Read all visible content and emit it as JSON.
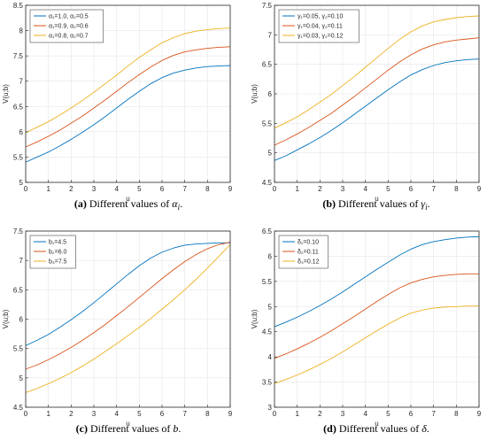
{
  "chart_data": [
    {
      "type": "line",
      "caption": {
        "letter": "(a)",
        "text": "Different values of ",
        "symbol": "α",
        "sub": "i",
        "end": "."
      },
      "xlabel": "u",
      "ylabel": "V(u;b)",
      "xlim": [
        0,
        9
      ],
      "ylim": [
        5,
        8.5
      ],
      "xticks": [
        "0",
        "1",
        "2",
        "3",
        "4",
        "5",
        "6",
        "7",
        "8",
        "9"
      ],
      "yticks": [
        "5",
        "5.5",
        "6",
        "6.5",
        "7",
        "7.5",
        "8",
        "8.5"
      ],
      "grid": true,
      "legend_position": "top-left",
      "x": [
        0,
        0.5,
        1,
        1.5,
        2,
        2.5,
        3,
        3.5,
        4,
        4.5,
        5,
        5.5,
        6,
        6.5,
        7,
        7.5,
        8,
        8.5,
        9
      ],
      "series": [
        {
          "name": "α₁=1.0, α₂=0.5",
          "color": "#0072BD",
          "values": [
            5.4,
            5.5,
            5.6,
            5.72,
            5.85,
            5.99,
            6.14,
            6.3,
            6.47,
            6.64,
            6.8,
            6.95,
            7.07,
            7.16,
            7.22,
            7.26,
            7.29,
            7.3,
            7.31
          ]
        },
        {
          "name": "α₁=0.9, α₂=0.6",
          "color": "#D95319",
          "values": [
            5.7,
            5.8,
            5.91,
            6.03,
            6.17,
            6.31,
            6.47,
            6.63,
            6.8,
            6.97,
            7.13,
            7.28,
            7.41,
            7.51,
            7.58,
            7.62,
            7.65,
            7.67,
            7.68
          ]
        },
        {
          "name": "α₁=0.8, α₂=0.7",
          "color": "#EDB120",
          "values": [
            5.98,
            6.09,
            6.2,
            6.33,
            6.47,
            6.62,
            6.78,
            6.95,
            7.12,
            7.3,
            7.47,
            7.62,
            7.76,
            7.86,
            7.94,
            7.99,
            8.02,
            8.04,
            8.05
          ]
        }
      ]
    },
    {
      "type": "line",
      "caption": {
        "letter": "(b)",
        "text": "Different values of ",
        "symbol": "γ",
        "sub": "i",
        "end": "."
      },
      "xlabel": "u",
      "ylabel": "V(u;b)",
      "xlim": [
        0,
        9
      ],
      "ylim": [
        4.5,
        7.5
      ],
      "xticks": [
        "0",
        "1",
        "2",
        "3",
        "4",
        "5",
        "6",
        "7",
        "8",
        "9"
      ],
      "yticks": [
        "4.5",
        "5",
        "5.5",
        "6",
        "6.5",
        "7",
        "7.5"
      ],
      "grid": true,
      "legend_position": "top-left",
      "x": [
        0,
        0.5,
        1,
        1.5,
        2,
        2.5,
        3,
        3.5,
        4,
        4.5,
        5,
        5.5,
        6,
        6.5,
        7,
        7.5,
        8,
        8.5,
        9
      ],
      "series": [
        {
          "name": "γ₁=0.05, γ₂=0.10",
          "color": "#0072BD",
          "values": [
            4.87,
            4.95,
            5.05,
            5.15,
            5.26,
            5.38,
            5.51,
            5.65,
            5.79,
            5.93,
            6.07,
            6.2,
            6.32,
            6.41,
            6.48,
            6.53,
            6.56,
            6.58,
            6.59
          ]
        },
        {
          "name": "γ₁=0.04, γ₂=0.11",
          "color": "#D95319",
          "values": [
            5.13,
            5.22,
            5.32,
            5.43,
            5.55,
            5.67,
            5.81,
            5.95,
            6.1,
            6.25,
            6.4,
            6.54,
            6.66,
            6.76,
            6.83,
            6.88,
            6.91,
            6.93,
            6.95
          ]
        },
        {
          "name": "γ₁=0.03, γ₂=0.12",
          "color": "#EDB120",
          "values": [
            5.42,
            5.51,
            5.61,
            5.73,
            5.86,
            5.99,
            6.14,
            6.29,
            6.45,
            6.61,
            6.77,
            6.92,
            7.05,
            7.15,
            7.22,
            7.26,
            7.29,
            7.31,
            7.32
          ]
        }
      ]
    },
    {
      "type": "line",
      "caption": {
        "letter": "(c)",
        "text": "Different values of ",
        "symbol": "b",
        "sub": "",
        "end": "."
      },
      "xlabel": "u",
      "ylabel": "V(u;b)",
      "xlim": [
        0,
        9
      ],
      "ylim": [
        4.5,
        7.5
      ],
      "xticks": [
        "0",
        "1",
        "2",
        "3",
        "4",
        "5",
        "6",
        "7",
        "8",
        "9"
      ],
      "yticks": [
        "4.5",
        "5",
        "5.5",
        "6",
        "6.5",
        "7",
        "7.5"
      ],
      "grid": true,
      "legend_position": "top-left",
      "x": [
        0,
        0.5,
        1,
        1.5,
        2,
        2.5,
        3,
        3.5,
        4,
        4.5,
        5,
        5.5,
        6,
        6.5,
        7,
        7.5,
        8,
        8.5,
        9
      ],
      "series": [
        {
          "name": "b₁=4.5",
          "color": "#0072BD",
          "values": [
            5.55,
            5.64,
            5.74,
            5.86,
            5.99,
            6.13,
            6.28,
            6.44,
            6.6,
            6.76,
            6.91,
            7.04,
            7.14,
            7.21,
            7.26,
            7.28,
            7.29,
            7.3,
            7.3
          ]
        },
        {
          "name": "b₂=6.0",
          "color": "#D95319",
          "values": [
            5.15,
            5.22,
            5.31,
            5.41,
            5.52,
            5.64,
            5.77,
            5.91,
            6.06,
            6.21,
            6.37,
            6.53,
            6.69,
            6.84,
            6.98,
            7.1,
            7.2,
            7.27,
            7.31
          ]
        },
        {
          "name": "b₃=7.5",
          "color": "#EDB120",
          "values": [
            4.75,
            4.82,
            4.9,
            4.99,
            5.09,
            5.2,
            5.32,
            5.45,
            5.58,
            5.72,
            5.86,
            6.01,
            6.17,
            6.33,
            6.5,
            6.68,
            6.87,
            7.07,
            7.27
          ]
        }
      ]
    },
    {
      "type": "line",
      "caption": {
        "letter": "(d)",
        "text": "Different values of ",
        "symbol": "δ",
        "sub": "",
        "end": "."
      },
      "xlabel": "u",
      "ylabel": "V(u;b)",
      "xlim": [
        0,
        9
      ],
      "ylim": [
        3,
        6.5
      ],
      "xticks": [
        "0",
        "1",
        "2",
        "3",
        "4",
        "5",
        "6",
        "7",
        "8",
        "9"
      ],
      "yticks": [
        "3",
        "3.5",
        "4",
        "4.5",
        "5",
        "5.5",
        "6",
        "6.5"
      ],
      "grid": true,
      "legend_position": "top-left",
      "x": [
        0,
        0.5,
        1,
        1.5,
        2,
        2.5,
        3,
        3.5,
        4,
        4.5,
        5,
        5.5,
        6,
        6.5,
        7,
        7.5,
        8,
        8.5,
        9
      ],
      "series": [
        {
          "name": "δ₁=0.10",
          "color": "#0072BD",
          "values": [
            4.6,
            4.69,
            4.79,
            4.9,
            5.02,
            5.15,
            5.29,
            5.44,
            5.59,
            5.74,
            5.88,
            6.02,
            6.14,
            6.23,
            6.29,
            6.33,
            6.36,
            6.38,
            6.39
          ]
        },
        {
          "name": "δ₂=0.11",
          "color": "#D95319",
          "values": [
            3.97,
            4.06,
            4.16,
            4.27,
            4.39,
            4.52,
            4.66,
            4.8,
            4.95,
            5.1,
            5.24,
            5.37,
            5.47,
            5.54,
            5.59,
            5.62,
            5.64,
            5.65,
            5.65
          ]
        },
        {
          "name": "δ₃=0.12",
          "color": "#EDB120",
          "values": [
            3.47,
            3.55,
            3.64,
            3.74,
            3.85,
            3.97,
            4.1,
            4.24,
            4.38,
            4.52,
            4.65,
            4.77,
            4.87,
            4.93,
            4.97,
            4.99,
            5.0,
            5.01,
            5.01
          ]
        }
      ]
    }
  ]
}
